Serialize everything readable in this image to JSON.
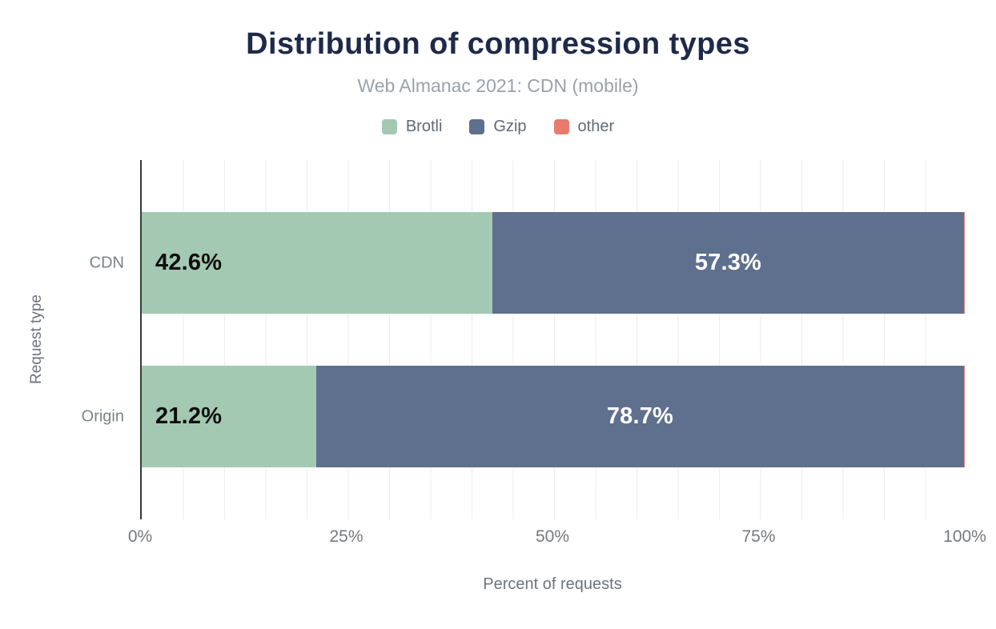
{
  "title": "Distribution of compression types",
  "subtitle": "Web Almanac 2021: CDN (mobile)",
  "chart_data": {
    "type": "bar",
    "orientation": "horizontal",
    "stacked": true,
    "categories": [
      "CDN",
      "Origin"
    ],
    "series": [
      {
        "name": "Brotli",
        "color": "#a3c9b3",
        "label_color": "#0d0d0d",
        "label_align": "start",
        "values": [
          42.6,
          21.2
        ],
        "labels": [
          "42.6%",
          "21.2%"
        ]
      },
      {
        "name": "Gzip",
        "color": "#5f708e",
        "label_color": "#ffffff",
        "label_align": "center",
        "values": [
          57.3,
          78.7
        ],
        "labels": [
          "57.3%",
          "78.7%"
        ]
      },
      {
        "name": "other",
        "color": "#e77c6e",
        "label_color": "#0d0d0d",
        "label_align": "center",
        "values": [
          0.1,
          0.1
        ],
        "labels": [
          "",
          ""
        ]
      }
    ],
    "xlabel": "Percent of requests",
    "ylabel": "Request type",
    "x_ticks": [
      "0%",
      "25%",
      "50%",
      "75%",
      "100%"
    ],
    "xlim": [
      0,
      100
    ],
    "grid": {
      "show": true,
      "interval_percent": 5
    },
    "legend_position": "top"
  },
  "colors": {
    "title": "#1e2a4a",
    "subtitle": "#9aa1a8",
    "axis_line": "#3a3b3d",
    "gridline": "#ededed",
    "tick_label": "#75797d",
    "axis_title": "#6d747b",
    "category_label": "#7b8287",
    "legend_label": "#5e6a77"
  }
}
